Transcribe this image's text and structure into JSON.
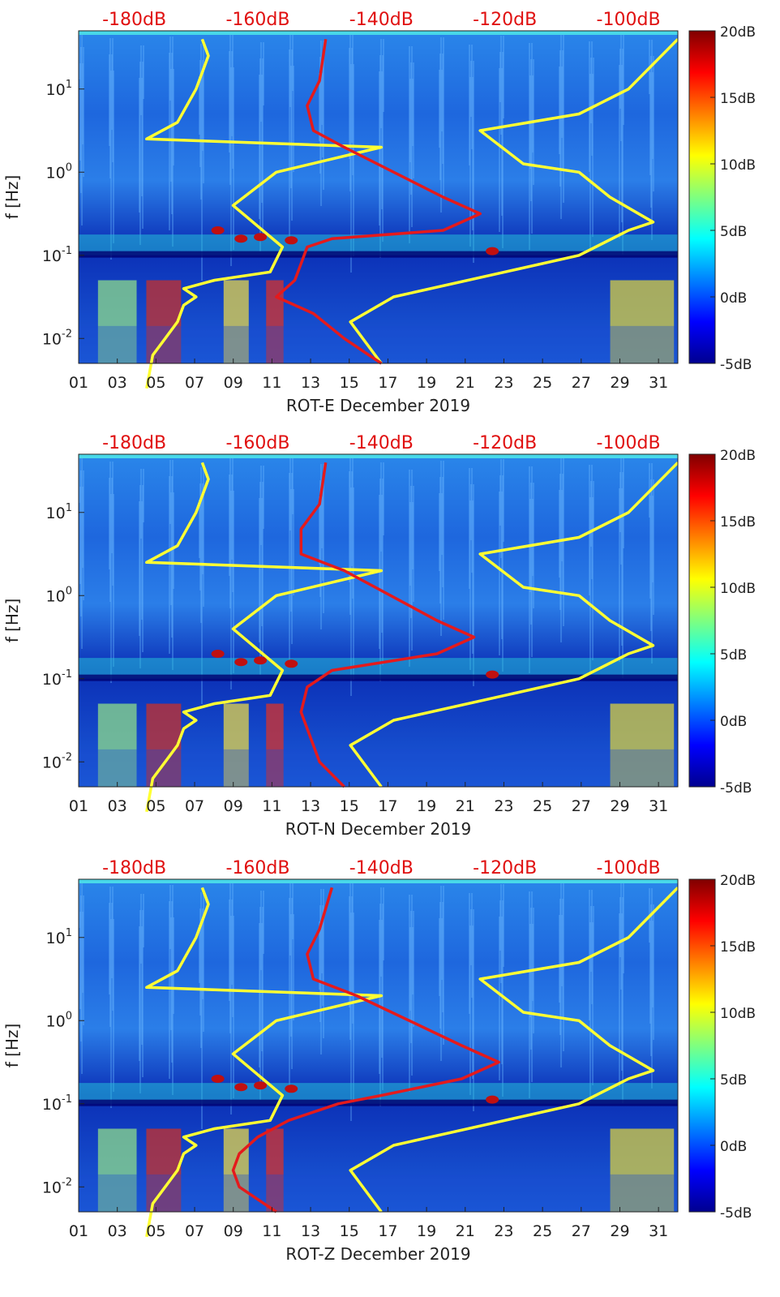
{
  "chart_data": [
    {
      "type": "heatmap",
      "id": "rot-e",
      "xlabel": "ROT-E December 2019",
      "ylabel": "f [Hz]",
      "x_ticks": [
        "01",
        "03",
        "05",
        "07",
        "09",
        "11",
        "13",
        "15",
        "17",
        "19",
        "21",
        "23",
        "25",
        "27",
        "29",
        "31"
      ],
      "y_ticks": [
        "10^-2",
        "10^-1",
        "10^0",
        "10^1"
      ],
      "ylim_log10": [
        -2.3,
        1.7
      ],
      "xlim_days": [
        1,
        32
      ],
      "top_ticks": [
        "-180dB",
        "-160dB",
        "-140dB",
        "-120dB",
        "-100dB"
      ],
      "top_tick_values_db": [
        -180,
        -160,
        -140,
        -120,
        -100
      ],
      "top_axis_db_range": [
        -189,
        -92
      ],
      "colorbar": {
        "ticks": [
          "20dB",
          "15dB",
          "10dB",
          "5dB",
          "0dB",
          "-5dB"
        ],
        "range_db": [
          -5,
          20
        ]
      },
      "series": [
        {
          "name": "noise model (yellow)",
          "color": "#ffff33",
          "db": [
            -178,
            -177,
            -175,
            -173,
            -172,
            -170,
            -172,
            -167,
            -158,
            -156,
            -164,
            -157,
            -140,
            -178,
            -173,
            -170,
            -169,
            -168,
            -169
          ],
          "logf": [
            -2.6,
            -2.2,
            -2.0,
            -1.8,
            -1.6,
            -1.5,
            -1.4,
            -1.3,
            -1.2,
            -0.9,
            -0.4,
            0.0,
            0.3,
            0.4,
            0.6,
            1.0,
            1.2,
            1.4,
            1.6
          ]
        },
        {
          "name": "noise model high (yellow)",
          "color": "#ffff33",
          "db": [
            -140,
            -145,
            -138,
            -120,
            -108,
            -100,
            -96,
            -103,
            -108,
            -117,
            -124,
            -108,
            -100,
            -92
          ],
          "logf": [
            -2.3,
            -1.8,
            -1.5,
            -1.2,
            -1.0,
            -0.7,
            -0.6,
            -0.3,
            0.0,
            0.1,
            0.5,
            0.7,
            1.0,
            1.6
          ]
        },
        {
          "name": "instrument noise (red)",
          "color": "#e41a1c",
          "db": [
            -140,
            -146,
            -151,
            -157,
            -154,
            -153,
            -152,
            -148,
            -130,
            -124,
            -130,
            -146,
            -151,
            -152,
            -150,
            -149
          ],
          "logf": [
            -2.3,
            -2.0,
            -1.7,
            -1.5,
            -1.3,
            -1.1,
            -0.9,
            -0.8,
            -0.7,
            -0.5,
            -0.3,
            0.3,
            0.5,
            0.8,
            1.1,
            1.6
          ]
        }
      ]
    },
    {
      "type": "heatmap",
      "id": "rot-n",
      "xlabel": "ROT-N December 2019",
      "ylabel": "f [Hz]",
      "x_ticks": [
        "01",
        "03",
        "05",
        "07",
        "09",
        "11",
        "13",
        "15",
        "17",
        "19",
        "21",
        "23",
        "25",
        "27",
        "29",
        "31"
      ],
      "y_ticks": [
        "10^-2",
        "10^-1",
        "10^0",
        "10^1"
      ],
      "ylim_log10": [
        -2.3,
        1.7
      ],
      "xlim_days": [
        1,
        32
      ],
      "top_ticks": [
        "-180dB",
        "-160dB",
        "-140dB",
        "-120dB",
        "-100dB"
      ],
      "top_tick_values_db": [
        -180,
        -160,
        -140,
        -120,
        -100
      ],
      "top_axis_db_range": [
        -189,
        -92
      ],
      "colorbar": {
        "ticks": [
          "20dB",
          "15dB",
          "10dB",
          "5dB",
          "0dB",
          "-5dB"
        ],
        "range_db": [
          -5,
          20
        ]
      },
      "series": [
        {
          "name": "noise model (yellow)",
          "color": "#ffff33",
          "db": [
            -178,
            -177,
            -175,
            -173,
            -172,
            -170,
            -172,
            -167,
            -158,
            -156,
            -164,
            -157,
            -140,
            -178,
            -173,
            -170,
            -169,
            -168,
            -169
          ],
          "logf": [
            -2.6,
            -2.2,
            -2.0,
            -1.8,
            -1.6,
            -1.5,
            -1.4,
            -1.3,
            -1.2,
            -0.9,
            -0.4,
            0.0,
            0.3,
            0.4,
            0.6,
            1.0,
            1.2,
            1.4,
            1.6
          ]
        },
        {
          "name": "noise model high (yellow)",
          "color": "#ffff33",
          "db": [
            -140,
            -145,
            -138,
            -120,
            -108,
            -100,
            -96,
            -103,
            -108,
            -117,
            -124,
            -108,
            -100,
            -92
          ],
          "logf": [
            -2.3,
            -1.8,
            -1.5,
            -1.2,
            -1.0,
            -0.7,
            -0.6,
            -0.3,
            0.0,
            0.1,
            0.5,
            0.7,
            1.0,
            1.6
          ]
        },
        {
          "name": "instrument noise (red)",
          "color": "#e41a1c",
          "db": [
            -146,
            -150,
            -152,
            -153,
            -152,
            -148,
            -131,
            -125,
            -131,
            -146,
            -153,
            -153,
            -150,
            -149
          ],
          "logf": [
            -2.3,
            -2.0,
            -1.6,
            -1.4,
            -1.1,
            -0.9,
            -0.7,
            -0.5,
            -0.3,
            0.3,
            0.5,
            0.8,
            1.1,
            1.6
          ]
        }
      ]
    },
    {
      "type": "heatmap",
      "id": "rot-z",
      "xlabel": "ROT-Z December 2019",
      "ylabel": "f [Hz]",
      "x_ticks": [
        "01",
        "03",
        "05",
        "07",
        "09",
        "11",
        "13",
        "15",
        "17",
        "19",
        "21",
        "23",
        "25",
        "27",
        "29",
        "31"
      ],
      "y_ticks": [
        "10^-2",
        "10^-1",
        "10^0",
        "10^1"
      ],
      "ylim_log10": [
        -2.3,
        1.7
      ],
      "xlim_days": [
        1,
        32
      ],
      "top_ticks": [
        "-180dB",
        "-160dB",
        "-140dB",
        "-120dB",
        "-100dB"
      ],
      "top_tick_values_db": [
        -180,
        -160,
        -140,
        -120,
        -100
      ],
      "top_axis_db_range": [
        -189,
        -92
      ],
      "colorbar": {
        "ticks": [
          "20dB",
          "15dB",
          "10dB",
          "5dB",
          "0dB",
          "-5dB"
        ],
        "range_db": [
          -5,
          20
        ]
      },
      "series": [
        {
          "name": "noise model (yellow)",
          "color": "#ffff33",
          "db": [
            -178,
            -177,
            -175,
            -173,
            -172,
            -170,
            -172,
            -167,
            -158,
            -156,
            -164,
            -157,
            -140,
            -178,
            -173,
            -170,
            -169,
            -168,
            -169
          ],
          "logf": [
            -2.6,
            -2.2,
            -2.0,
            -1.8,
            -1.6,
            -1.5,
            -1.4,
            -1.3,
            -1.2,
            -0.9,
            -0.4,
            0.0,
            0.3,
            0.4,
            0.6,
            1.0,
            1.2,
            1.4,
            1.6
          ]
        },
        {
          "name": "noise model high (yellow)",
          "color": "#ffff33",
          "db": [
            -140,
            -145,
            -138,
            -120,
            -108,
            -100,
            -96,
            -103,
            -108,
            -117,
            -124,
            -108,
            -100,
            -92
          ],
          "logf": [
            -2.3,
            -1.8,
            -1.5,
            -1.2,
            -1.0,
            -0.7,
            -0.6,
            -0.3,
            0.0,
            0.1,
            0.5,
            0.7,
            1.0,
            1.6
          ]
        },
        {
          "name": "instrument noise (red)",
          "color": "#e41a1c",
          "db": [
            -157,
            -163,
            -164,
            -163,
            -160,
            -155,
            -147,
            -140,
            -127,
            -121,
            -127,
            -144,
            -151,
            -152,
            -150,
            -148
          ],
          "logf": [
            -2.3,
            -2.0,
            -1.8,
            -1.6,
            -1.4,
            -1.2,
            -1.0,
            -0.9,
            -0.7,
            -0.5,
            -0.3,
            0.3,
            0.5,
            0.8,
            1.1,
            1.6
          ]
        }
      ]
    }
  ]
}
